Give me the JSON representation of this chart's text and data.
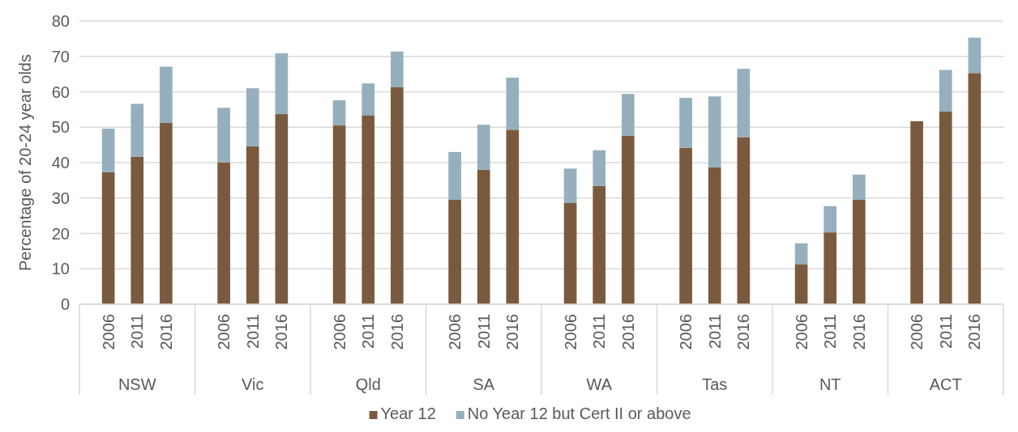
{
  "chart_data": {
    "type": "bar",
    "stacked": true,
    "ylabel": "Percentage of 20-24 year olds",
    "categories": [
      "2006",
      "2011",
      "2016",
      null,
      "2006",
      "2011",
      "2016",
      null,
      "2006",
      "2011",
      "2016",
      null,
      "2006",
      "2011",
      "2016",
      null,
      "2006",
      "2011",
      "2016",
      null,
      "2006",
      "2011",
      "2016",
      null,
      "2006",
      "2011",
      "2016",
      null,
      "2006",
      "2011",
      "2016"
    ],
    "series": [
      {
        "name": "Year 12",
        "color": "#7a5a3e",
        "values": [
          37.3,
          41.7,
          51.2,
          null,
          40.1,
          44.6,
          53.7,
          null,
          50.5,
          53.4,
          61.4,
          null,
          29.5,
          38.0,
          49.3,
          null,
          28.7,
          33.4,
          47.6,
          null,
          44.2,
          38.7,
          47.2,
          null,
          11.2,
          20.3,
          29.5,
          null,
          51.7,
          54.4,
          65.3
        ]
      },
      {
        "name": "No Year 12 but Cert II or above",
        "color": "#95afbd",
        "values": [
          12.3,
          14.9,
          15.9,
          null,
          15.4,
          16.4,
          17.2,
          null,
          7.1,
          9.0,
          10.0,
          null,
          13.5,
          12.7,
          14.7,
          null,
          9.6,
          10.1,
          11.8,
          null,
          14.1,
          20.0,
          19.3,
          null,
          6.0,
          7.4,
          7.1,
          null,
          null,
          11.8,
          10.0
        ]
      }
    ],
    "annotations": [
      "NSW",
      "Vic",
      "Qld",
      "SA",
      "WA",
      "Tas",
      "NT",
      "ACT"
    ],
    "ylim": [
      0,
      80
    ],
    "yticks": [
      0,
      10,
      20,
      30,
      40,
      50,
      60,
      70,
      80
    ],
    "grid": "y",
    "legend": "bottom"
  }
}
